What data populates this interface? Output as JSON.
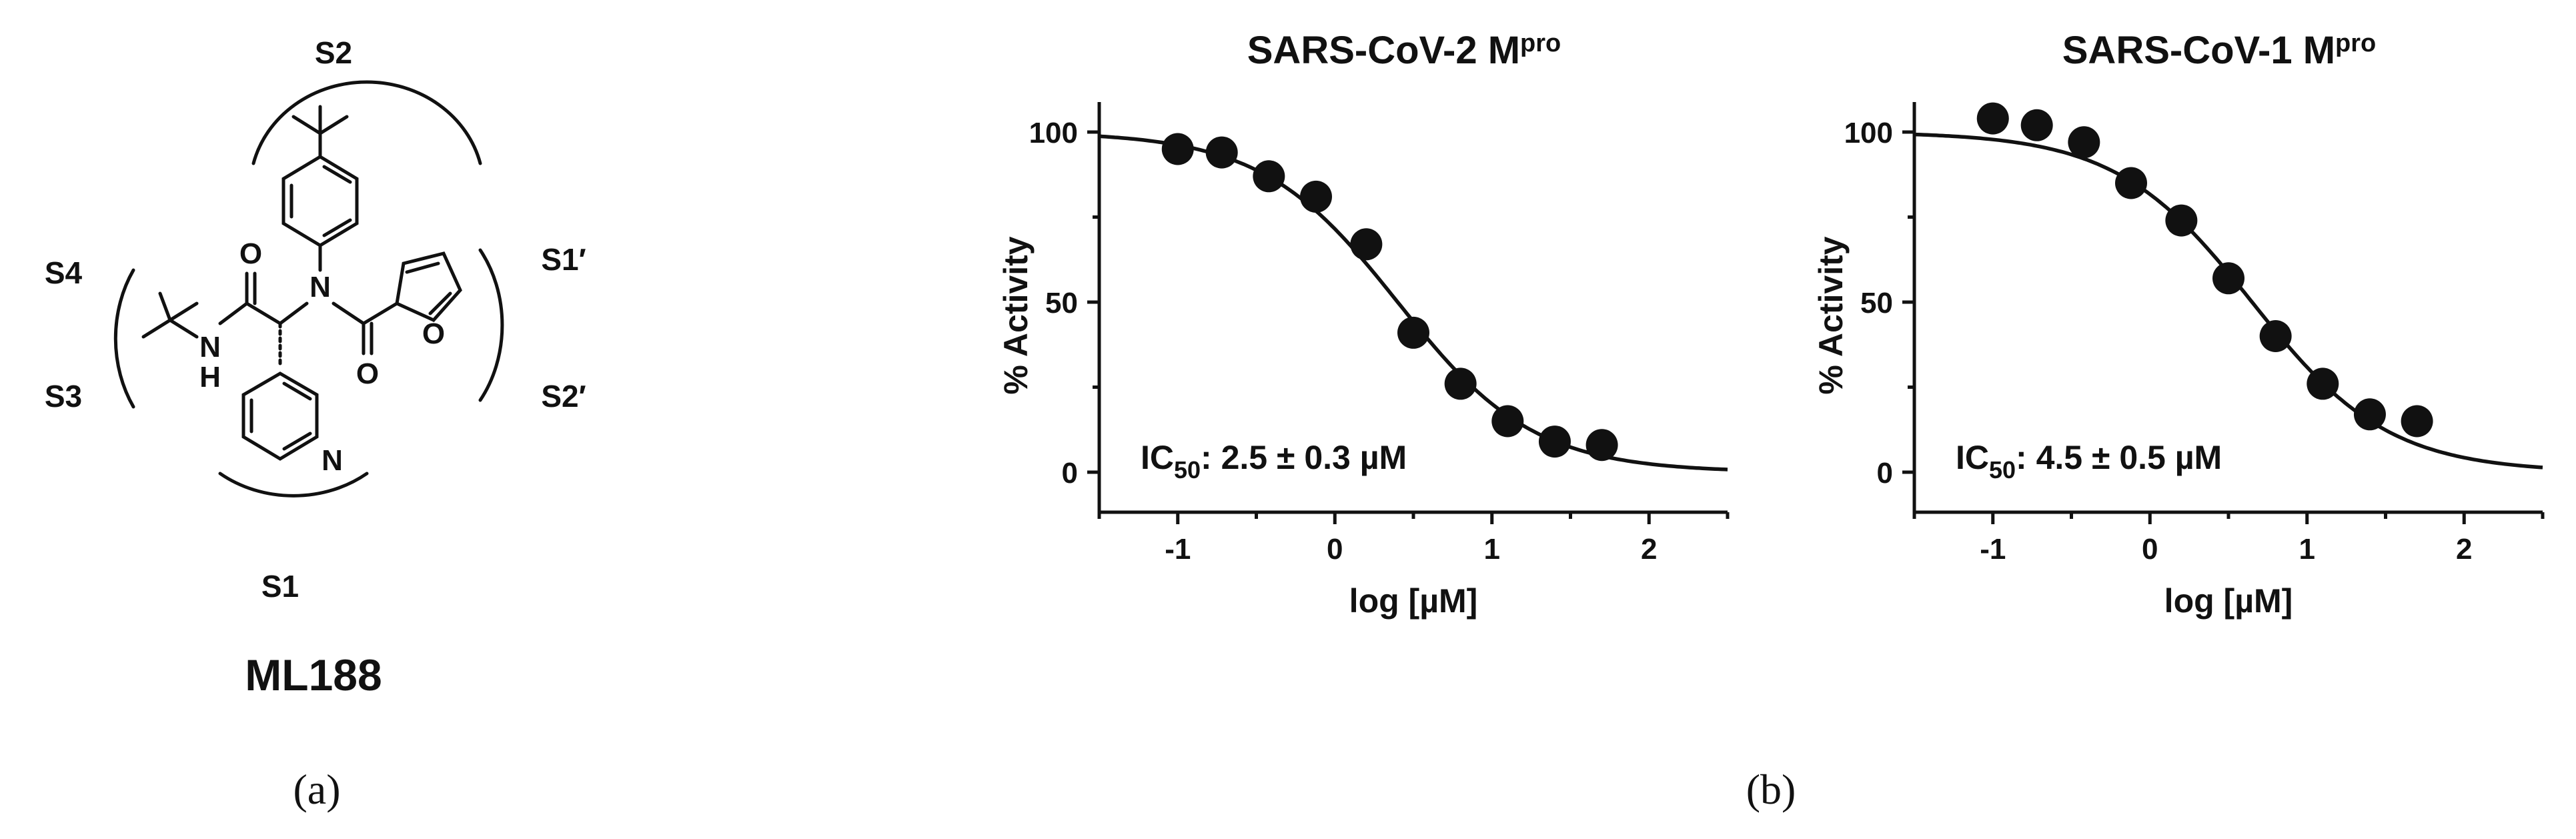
{
  "panel_a": {
    "caption": "(a)",
    "compound": "ML188",
    "pockets": {
      "s2": "S2",
      "s4": "S4",
      "s3": "S3",
      "s1": "S1",
      "s1p": "S1′",
      "s2p": "S2′"
    },
    "atoms": {
      "o_amide": "O",
      "nh_n": "N",
      "nh_h": "H",
      "n_center": "N",
      "o_furoyl": "O",
      "o_furan": "O",
      "n_pyridine": "N"
    }
  },
  "panel_b": {
    "caption": "(b)"
  },
  "chart_data": [
    {
      "type": "scatter",
      "title_main": "SARS-CoV-2 M",
      "title_sup": "pro",
      "title_color": "#2e9ee6",
      "xlabel": "log [µM]",
      "ylabel": "% Activity",
      "xlim": [
        -1.5,
        2.5
      ],
      "ylim": [
        0,
        100
      ],
      "xticks": [
        -1,
        0,
        1,
        2
      ],
      "yticks": [
        0,
        50,
        100
      ],
      "xtick_labels": [
        "-1",
        "0",
        "1",
        "2"
      ],
      "ytick_labels": [
        "0",
        "50",
        "100"
      ],
      "ic50_label": "IC",
      "ic50_sub": "50",
      "ic50_value": ": 2.5 ± 0.3 µM",
      "points": [
        {
          "x": -1.0,
          "y": 95
        },
        {
          "x": -0.72,
          "y": 94
        },
        {
          "x": -0.42,
          "y": 87
        },
        {
          "x": -0.12,
          "y": 81
        },
        {
          "x": 0.2,
          "y": 67
        },
        {
          "x": 0.5,
          "y": 41
        },
        {
          "x": 0.8,
          "y": 26
        },
        {
          "x": 1.1,
          "y": 15
        },
        {
          "x": 1.4,
          "y": 9
        },
        {
          "x": 1.7,
          "y": 8
        }
      ],
      "fit": {
        "top": 100,
        "bottom": 0,
        "log_ic50": 0.4,
        "hill": 1
      }
    },
    {
      "type": "scatter",
      "title_main": "SARS-CoV-1 M",
      "title_sup": "pro",
      "title_color": "#ee55e8",
      "xlabel": "log [µM]",
      "ylabel": "% Activity",
      "xlim": [
        -1.5,
        2.5
      ],
      "ylim": [
        0,
        100
      ],
      "xticks": [
        -1,
        0,
        1,
        2
      ],
      "yticks": [
        0,
        50,
        100
      ],
      "xtick_labels": [
        "-1",
        "0",
        "1",
        "2"
      ],
      "ytick_labels": [
        "0",
        "50",
        "100"
      ],
      "ic50_label": "IC",
      "ic50_sub": "50",
      "ic50_value": ": 4.5 ± 0.5 µM",
      "points": [
        {
          "x": -1.0,
          "y": 104
        },
        {
          "x": -0.72,
          "y": 102
        },
        {
          "x": -0.42,
          "y": 97
        },
        {
          "x": -0.12,
          "y": 85
        },
        {
          "x": 0.2,
          "y": 74
        },
        {
          "x": 0.5,
          "y": 57
        },
        {
          "x": 0.8,
          "y": 40
        },
        {
          "x": 1.1,
          "y": 26
        },
        {
          "x": 1.4,
          "y": 17
        },
        {
          "x": 1.7,
          "y": 15
        }
      ],
      "fit": {
        "top": 100,
        "bottom": 0,
        "log_ic50": 0.65,
        "hill": 1
      }
    }
  ]
}
